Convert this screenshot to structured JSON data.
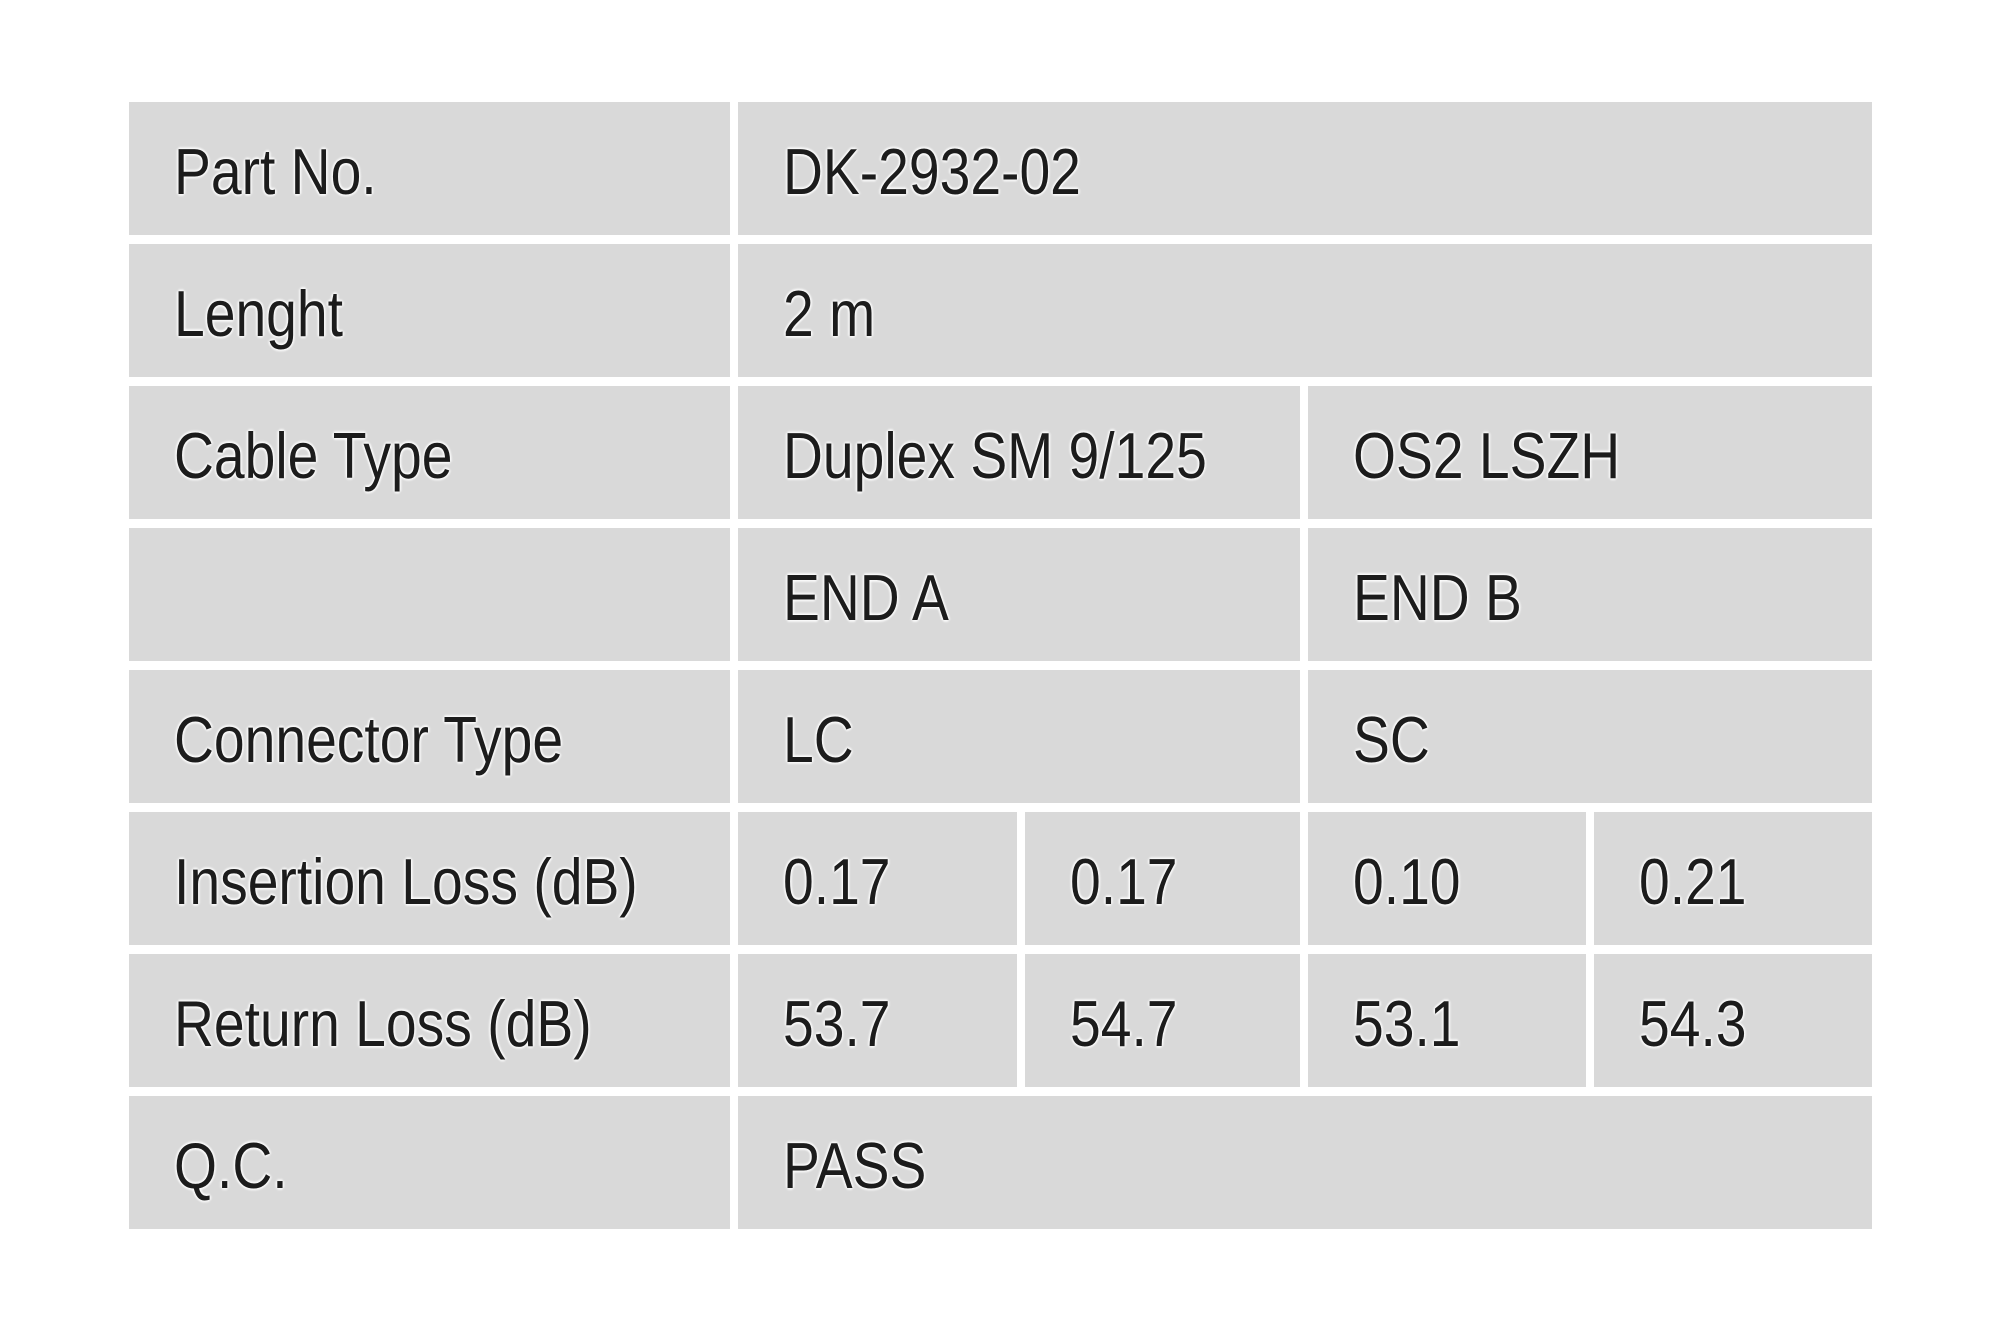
{
  "colors": {
    "page_background": "#ffffff",
    "cell_background": "#d9d9d9",
    "gridline": "#ffffff",
    "text": "#1c1c1c"
  },
  "table": {
    "rows": [
      {
        "label": "Part No.",
        "values": [
          {
            "text": "DK-2932-02",
            "span": 4
          }
        ]
      },
      {
        "label": "Lenght",
        "values": [
          {
            "text": "2 m",
            "span": 4
          }
        ]
      },
      {
        "label": "Cable Type",
        "values": [
          {
            "text": "Duplex SM 9/125",
            "span": 2
          },
          {
            "text": "OS2 LSZH",
            "span": 2
          }
        ]
      },
      {
        "label": "",
        "values": [
          {
            "text": "END A",
            "span": 2
          },
          {
            "text": "END B",
            "span": 2
          }
        ]
      },
      {
        "label": "Connector Type",
        "values": [
          {
            "text": "LC",
            "span": 2
          },
          {
            "text": "SC",
            "span": 2
          }
        ]
      },
      {
        "label": "Insertion Loss (dB)",
        "values": [
          {
            "text": "0.17",
            "span": 1
          },
          {
            "text": "0.17",
            "span": 1
          },
          {
            "text": "0.10",
            "span": 1
          },
          {
            "text": "0.21",
            "span": 1
          }
        ]
      },
      {
        "label": "Return Loss (dB)",
        "values": [
          {
            "text": "53.7",
            "span": 1
          },
          {
            "text": "54.7",
            "span": 1
          },
          {
            "text": "53.1",
            "span": 1
          },
          {
            "text": "54.3",
            "span": 1
          }
        ]
      },
      {
        "label": "Q.C.",
        "values": [
          {
            "text": "PASS",
            "span": 4
          }
        ]
      }
    ]
  }
}
